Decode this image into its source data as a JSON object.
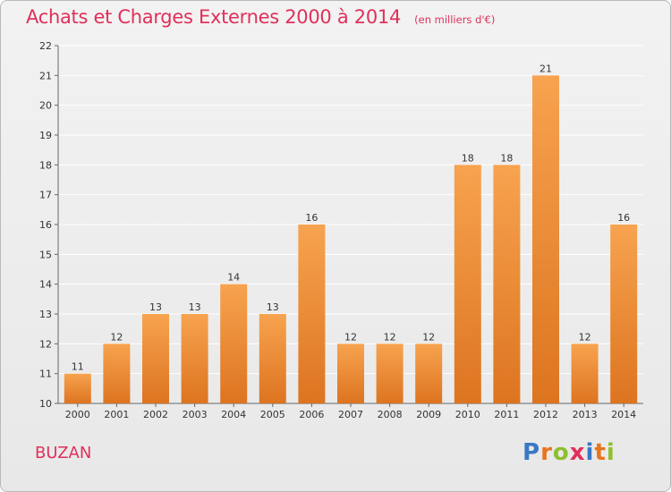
{
  "chart_data": {
    "type": "bar",
    "title": "Achats et Charges Externes 2000 à 2014",
    "subtitle": "(en milliers d'€)",
    "categories": [
      "2000",
      "2001",
      "2002",
      "2003",
      "2004",
      "2005",
      "2006",
      "2007",
      "2008",
      "2009",
      "2010",
      "2011",
      "2012",
      "2013",
      "2014"
    ],
    "values": [
      11,
      12,
      13,
      13,
      14,
      13,
      16,
      12,
      12,
      12,
      18,
      18,
      21,
      12,
      16
    ],
    "ylim": [
      10,
      22
    ],
    "yticks": [
      10,
      11,
      12,
      13,
      14,
      15,
      16,
      17,
      18,
      19,
      20,
      21,
      22
    ],
    "grid": true,
    "colors": {
      "bar_top": "#f7a34f",
      "bar_bottom": "#dd7420",
      "grid": "#ffffff",
      "axis": "#666666"
    }
  },
  "footer": {
    "commune": "BUZAN",
    "logo_letters": [
      {
        "ch": "P",
        "color": "#3a78c2"
      },
      {
        "ch": "r",
        "color": "#e8741e"
      },
      {
        "ch": "o",
        "color": "#8fbf2e"
      },
      {
        "ch": "x",
        "color": "#e0305a"
      },
      {
        "ch": "i",
        "color": "#3a78c2"
      },
      {
        "ch": "t",
        "color": "#e8741e"
      },
      {
        "ch": "i",
        "color": "#8fbf2e"
      }
    ]
  }
}
